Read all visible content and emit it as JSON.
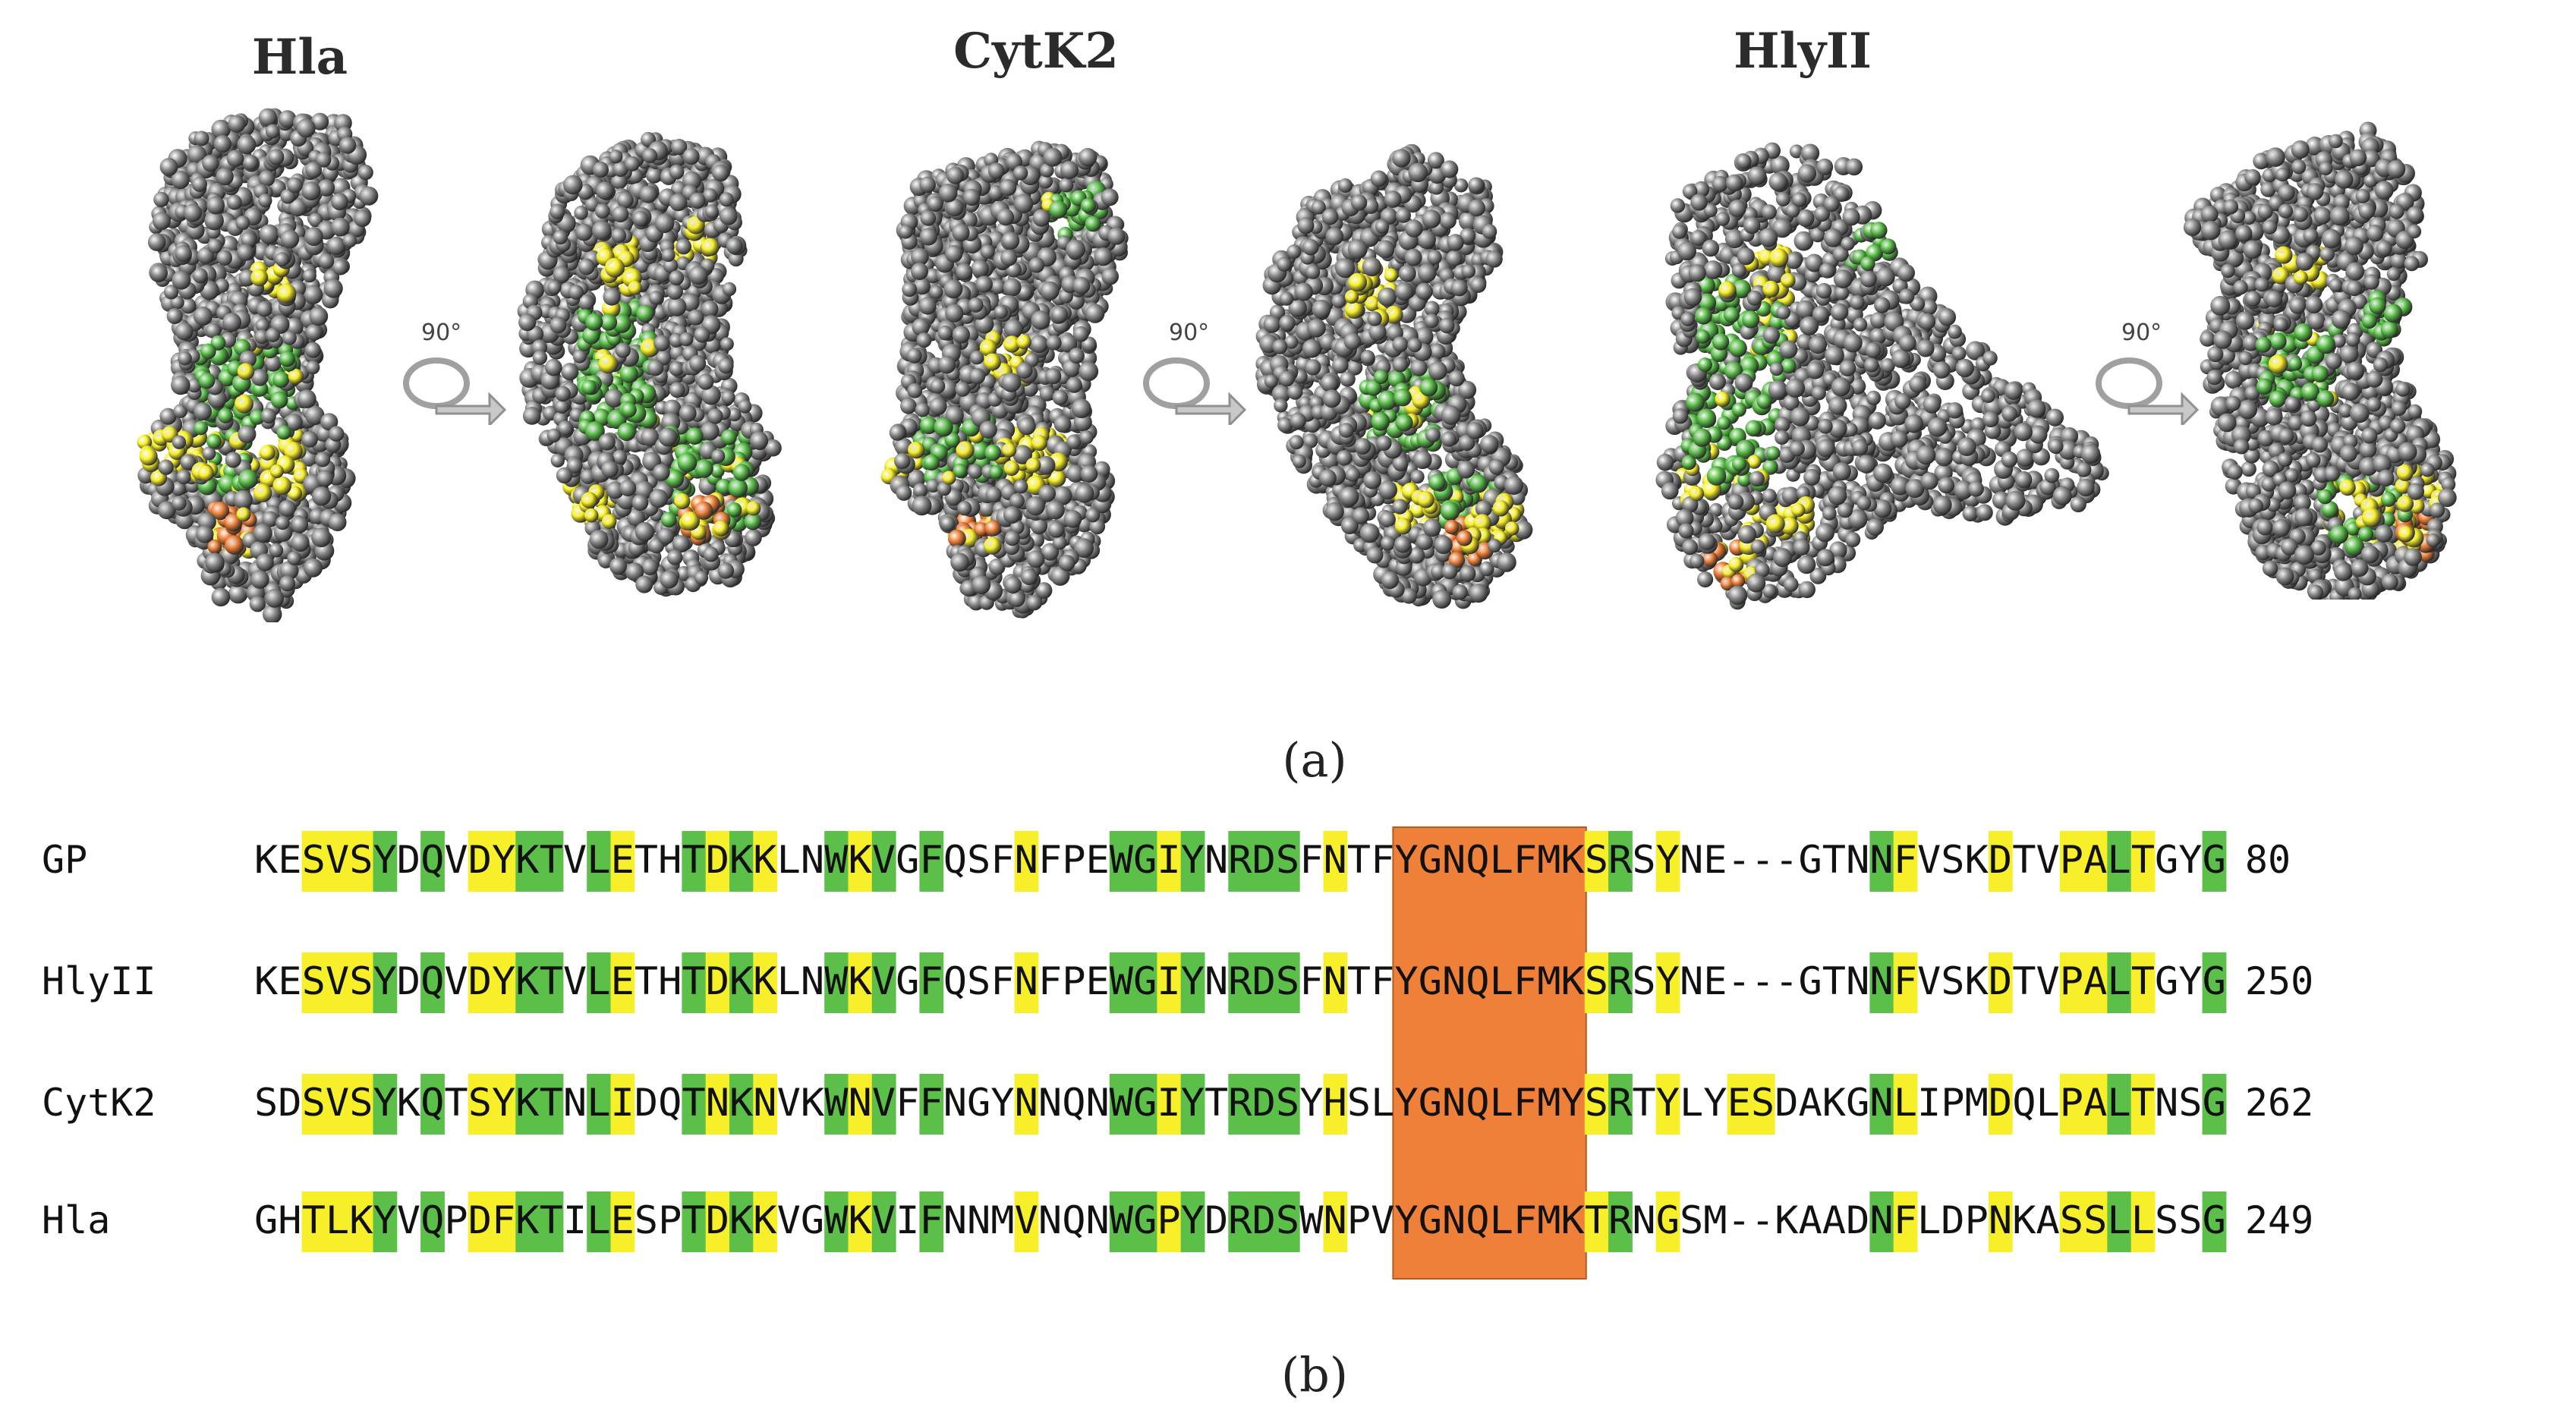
{
  "figure": {
    "structures": [
      {
        "name": "Hla"
      },
      {
        "name": "CytK2"
      },
      {
        "name": "HlyII"
      }
    ],
    "rotation_label": "90°",
    "panel_a_label": "(a)",
    "panel_b_label": "(b)",
    "colors": {
      "atom_gray": "#707070",
      "conserved_yellow": "#f7ef2a",
      "identical_green": "#5bbf4a",
      "motif_orange": "#ee8039"
    }
  },
  "alignment": {
    "rows": [
      {
        "name": "GP",
        "sequence": "KESVSYDQVDYKTVLETHTDKKLNWKVGFQSFNFPEWGIYNRDSFNTFYGNQLFMKSRSYNE---GTNNFVSKDTVPALTGYG",
        "end": "80"
      },
      {
        "name": "HlyII",
        "sequence": "KESVSYDQVDYKTVLETHTDKKLNWKVGFQSFNFPEWGIYNRDSFNTFYGNQLFMKSRSYNE---GTNNFVSKDTVPALTGYG",
        "end": "250"
      },
      {
        "name": "CytK2",
        "sequence": "SDSVSYKQTSYKTNLIDQTNKNVKWNVFFNGYNNQNWGIYTRDSYHSLYGNQLFMYSRTYLYESDAKGNLIPMDQLPALTNSG",
        "end": "262"
      },
      {
        "name": "Hla",
        "sequence": "GHTLKYVQPDFKTILESPTDKKVGWKVIFNNMVNQNWGPYDRDSWNPVYGNQLFMKTRNGSM--KAADNFLDPNKASSLLSSG",
        "end": "249"
      }
    ],
    "motif_columns": [
      48,
      55
    ]
  }
}
